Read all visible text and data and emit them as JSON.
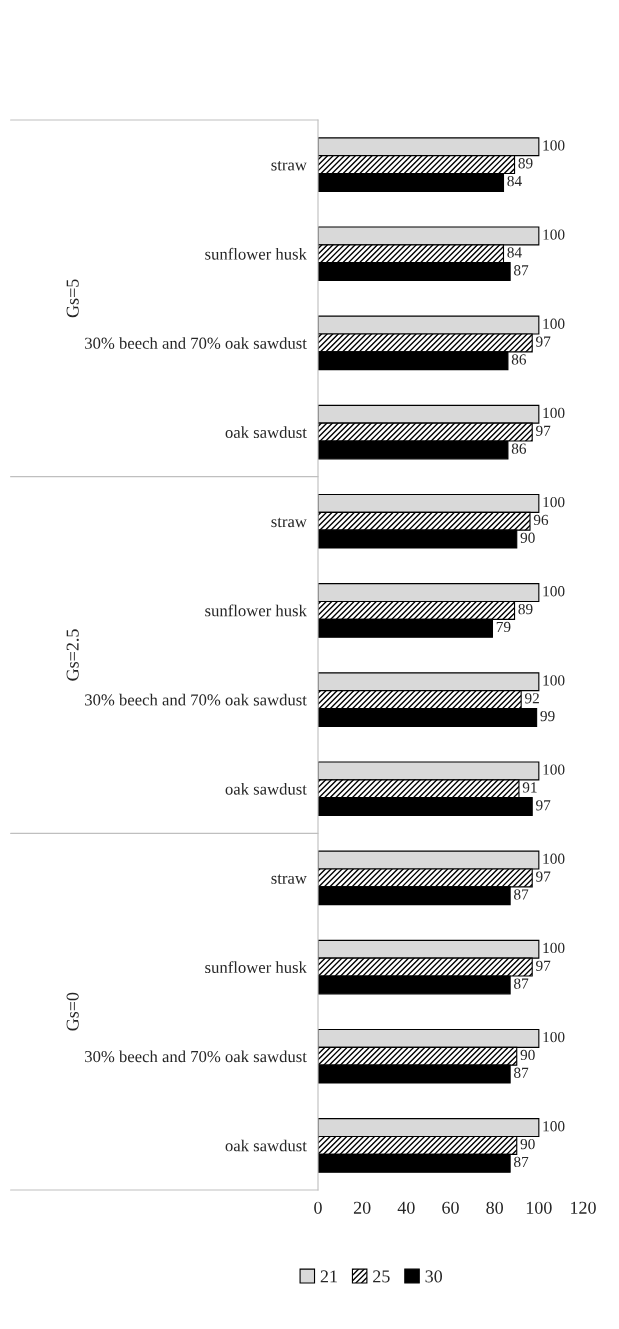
{
  "chart_data": {
    "type": "bar",
    "orientation": "horizontal",
    "categories": [
      "straw",
      "sunflower husk",
      "30% beech and 70% oak sawdust",
      "oak sawdust",
      "straw",
      "sunflower husk",
      "30% beech and 70% oak sawdust",
      "oak sawdust",
      "straw",
      "sunflower husk",
      "30% beech and 70% oak sawdust",
      "oak sawdust"
    ],
    "series": [
      {
        "name": "21",
        "color": "#d9d9d9",
        "values": [
          100,
          100,
          100,
          100,
          100,
          100,
          100,
          100,
          100,
          100,
          100,
          100
        ]
      },
      {
        "name": "25",
        "color": "#000000",
        "values": [
          89,
          84,
          97,
          97,
          96,
          89,
          92,
          91,
          97,
          97,
          90,
          90
        ]
      },
      {
        "name": "30",
        "color": "#000000",
        "values": [
          84,
          87,
          86,
          86,
          90,
          79,
          99,
          97,
          87,
          87,
          87,
          87
        ]
      }
    ],
    "annotations": [
      "Gs=5",
      "Gs=2.5",
      "Gs=0"
    ],
    "xlim": [
      0,
      120
    ],
    "xticks": [
      0,
      20,
      40,
      60,
      80,
      100,
      120
    ],
    "data_labels": true,
    "grid": false,
    "legend": "bottom"
  }
}
